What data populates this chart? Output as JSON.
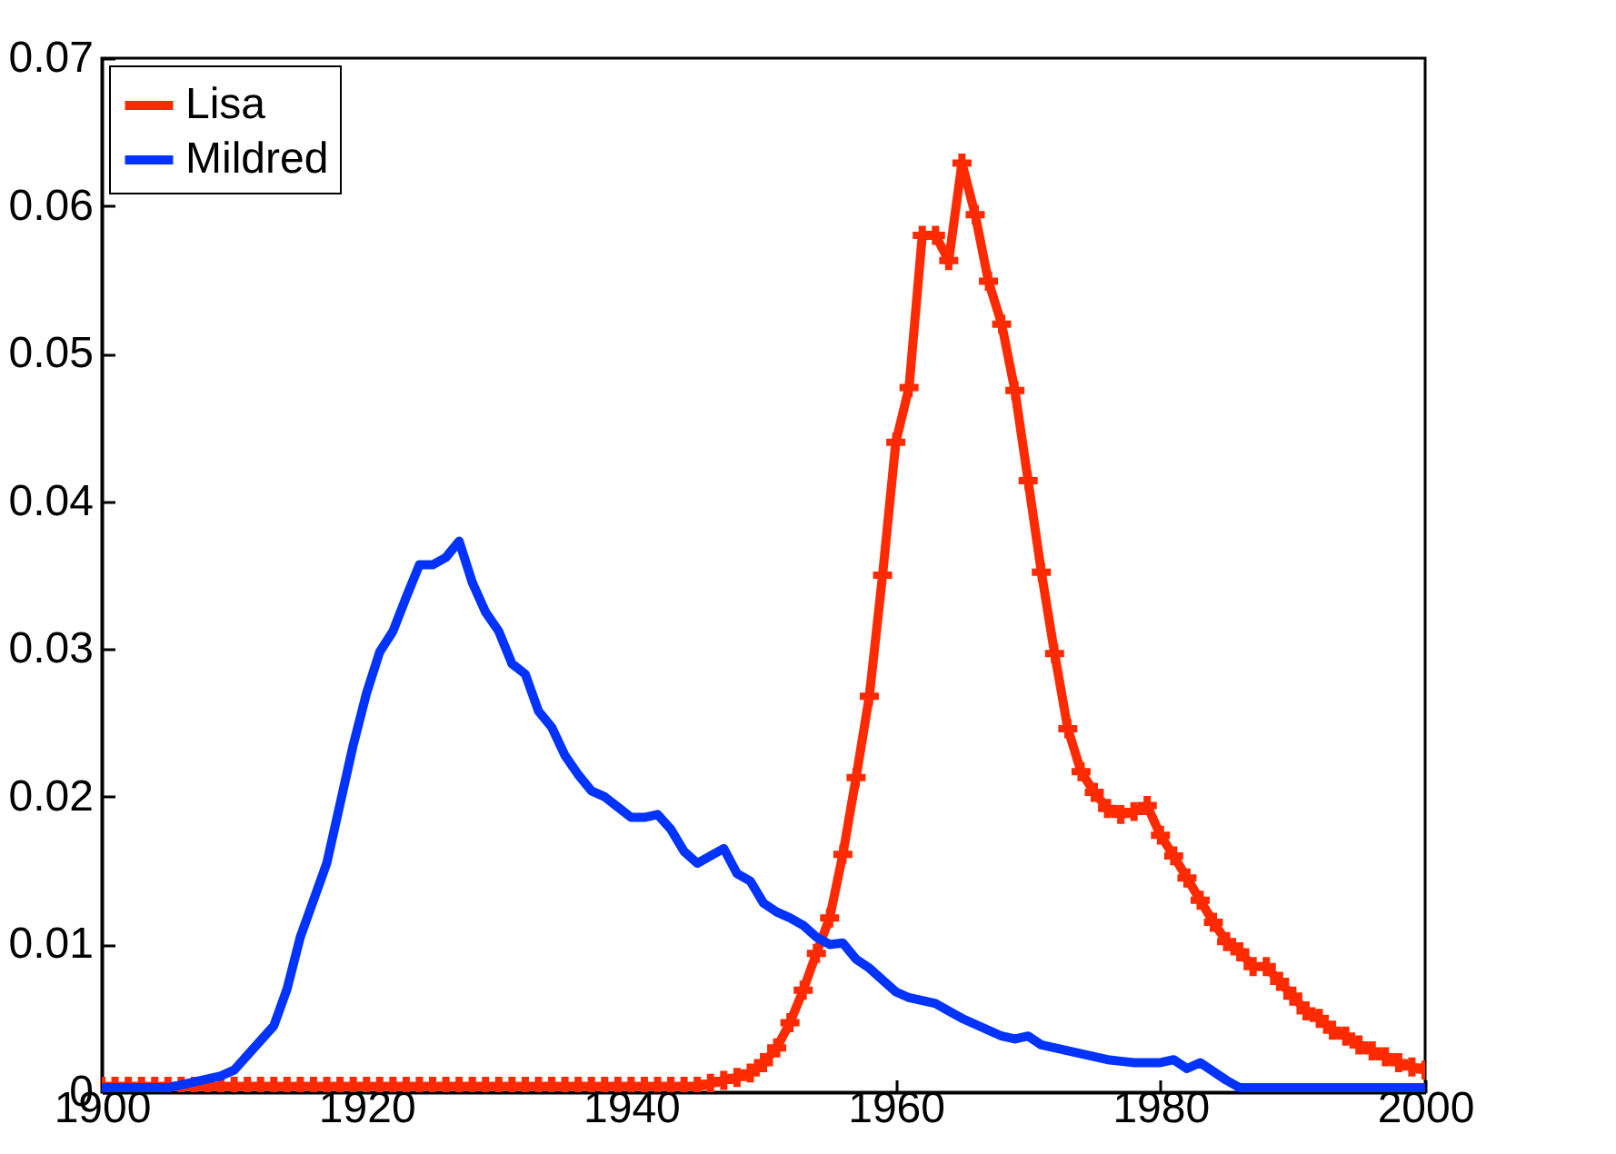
{
  "chart_data": {
    "type": "line",
    "x": [
      1900,
      1901,
      1902,
      1903,
      1904,
      1905,
      1906,
      1907,
      1908,
      1909,
      1910,
      1911,
      1912,
      1913,
      1914,
      1915,
      1916,
      1917,
      1918,
      1919,
      1920,
      1921,
      1922,
      1923,
      1924,
      1925,
      1926,
      1927,
      1928,
      1929,
      1930,
      1931,
      1932,
      1933,
      1934,
      1935,
      1936,
      1937,
      1938,
      1939,
      1940,
      1941,
      1942,
      1943,
      1944,
      1945,
      1946,
      1947,
      1948,
      1949,
      1950,
      1951,
      1952,
      1953,
      1954,
      1955,
      1956,
      1957,
      1958,
      1959,
      1960,
      1961,
      1962,
      1963,
      1964,
      1965,
      1966,
      1967,
      1968,
      1969,
      1970,
      1971,
      1972,
      1973,
      1974,
      1975,
      1976,
      1977,
      1978,
      1979,
      1980,
      1981,
      1982,
      1983,
      1984,
      1985,
      1986,
      1987,
      1988,
      1989,
      1990,
      1991,
      1992,
      1993,
      1994,
      1995,
      1996,
      1997,
      1998,
      1999,
      2000
    ],
    "series": [
      {
        "name": "Lisa",
        "color": "#ff2a00",
        "marker": "cross",
        "values": [
          0.0004,
          0.0004,
          0.0004,
          0.0004,
          0.0004,
          0.0004,
          0.0004,
          0.0004,
          0.0004,
          0.0004,
          0.0004,
          0.0004,
          0.0004,
          0.0004,
          0.0004,
          0.0004,
          0.0004,
          0.0004,
          0.0004,
          0.0004,
          0.0004,
          0.0004,
          0.0004,
          0.0004,
          0.0004,
          0.0004,
          0.0004,
          0.0004,
          0.0004,
          0.0004,
          0.0004,
          0.0004,
          0.0004,
          0.0004,
          0.0004,
          0.0004,
          0.0004,
          0.0004,
          0.0004,
          0.0004,
          0.0004,
          0.0004,
          0.0004,
          0.0004,
          0.0004,
          0.0004,
          0.0006,
          0.0008,
          0.001,
          0.0013,
          0.002,
          0.003,
          0.0047,
          0.0069,
          0.0094,
          0.0118,
          0.0161,
          0.0213,
          0.0268,
          0.035,
          0.044,
          0.0477,
          0.058,
          0.058,
          0.0563,
          0.0629,
          0.0594,
          0.0549,
          0.052,
          0.0475,
          0.0414,
          0.0352,
          0.0297,
          0.0246,
          0.0217,
          0.0203,
          0.0192,
          0.0188,
          0.019,
          0.0194,
          0.0174,
          0.016,
          0.0145,
          0.013,
          0.0115,
          0.0102,
          0.0095,
          0.0085,
          0.0085,
          0.0075,
          0.0065,
          0.0055,
          0.005,
          0.0042,
          0.0038,
          0.0032,
          0.0028,
          0.0024,
          0.002,
          0.0017,
          0.0015
        ]
      },
      {
        "name": "Mildred",
        "color": "#0033ff",
        "marker": "none",
        "values": [
          0.0003,
          0.0003,
          0.0003,
          0.0003,
          0.0003,
          0.0003,
          0.0005,
          0.0007,
          0.0009,
          0.0011,
          0.0015,
          0.0025,
          0.0035,
          0.0045,
          0.007,
          0.0105,
          0.013,
          0.0155,
          0.0195,
          0.0235,
          0.027,
          0.0298,
          0.0312,
          0.0335,
          0.0357,
          0.0357,
          0.0362,
          0.0373,
          0.0345,
          0.0325,
          0.0312,
          0.029,
          0.0283,
          0.0258,
          0.0247,
          0.0228,
          0.0215,
          0.0204,
          0.02,
          0.0193,
          0.0186,
          0.0186,
          0.0188,
          0.0178,
          0.0163,
          0.0155,
          0.016,
          0.0165,
          0.0148,
          0.0143,
          0.0128,
          0.0122,
          0.0118,
          0.0113,
          0.0105,
          0.01,
          0.0101,
          0.009,
          0.0084,
          0.0076,
          0.0068,
          0.0064,
          0.0062,
          0.006,
          0.0055,
          0.005,
          0.0046,
          0.0042,
          0.0038,
          0.0036,
          0.0038,
          0.0032,
          0.003,
          0.0028,
          0.0026,
          0.0024,
          0.0022,
          0.0021,
          0.002,
          0.002,
          0.002,
          0.0022,
          0.0016,
          0.002,
          0.0014,
          0.0008,
          0.0003,
          0.0003,
          0.0003,
          0.0003,
          0.0003,
          0.0003,
          0.0003,
          0.0003,
          0.0003,
          0.0003,
          0.0003,
          0.0003,
          0.0003,
          0.0003,
          0.0003
        ]
      }
    ],
    "xlim": [
      1900,
      2000
    ],
    "xticks": [
      1900,
      1920,
      1940,
      1960,
      1980,
      2000
    ],
    "ylim": [
      0,
      0.07
    ],
    "yticks": [
      0,
      0.01,
      0.02,
      0.03,
      0.04,
      0.05,
      0.06,
      0.07
    ],
    "grid": false,
    "legend": "top left"
  }
}
